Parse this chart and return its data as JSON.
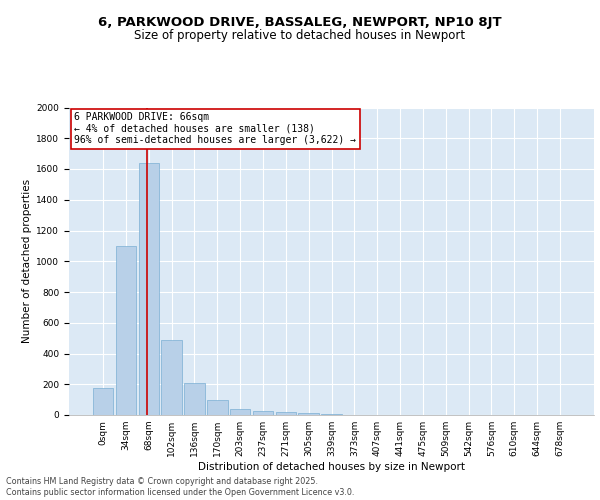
{
  "title_line1": "6, PARKWOOD DRIVE, BASSALEG, NEWPORT, NP10 8JT",
  "title_line2": "Size of property relative to detached houses in Newport",
  "xlabel": "Distribution of detached houses by size in Newport",
  "ylabel": "Number of detached properties",
  "bar_color": "#b8d0e8",
  "bar_edge_color": "#7aafd4",
  "background_color": "#dce9f5",
  "categories": [
    "0sqm",
    "34sqm",
    "68sqm",
    "102sqm",
    "136sqm",
    "170sqm",
    "203sqm",
    "237sqm",
    "271sqm",
    "305sqm",
    "339sqm",
    "373sqm",
    "407sqm",
    "441sqm",
    "475sqm",
    "509sqm",
    "542sqm",
    "576sqm",
    "610sqm",
    "644sqm",
    "678sqm"
  ],
  "values": [
    175,
    1100,
    1640,
    490,
    205,
    100,
    42,
    25,
    18,
    10,
    4,
    2,
    1,
    0,
    0,
    0,
    0,
    0,
    0,
    0,
    0
  ],
  "pct_smaller_detached": "4%",
  "n_smaller_detached": 138,
  "pct_larger_semi": "96%",
  "n_larger_semi": 3622,
  "annotation_box_color": "#ffffff",
  "annotation_box_edge_color": "#cc0000",
  "marker_line_color": "#cc0000",
  "ylim": [
    0,
    2000
  ],
  "yticks": [
    0,
    200,
    400,
    600,
    800,
    1000,
    1200,
    1400,
    1600,
    1800,
    2000
  ],
  "footer_line1": "Contains HM Land Registry data © Crown copyright and database right 2025.",
  "footer_line2": "Contains public sector information licensed under the Open Government Licence v3.0.",
  "title_fontsize": 9.5,
  "subtitle_fontsize": 8.5,
  "axis_label_fontsize": 7.5,
  "tick_fontsize": 6.5,
  "annotation_fontsize": 7,
  "footer_fontsize": 5.8
}
